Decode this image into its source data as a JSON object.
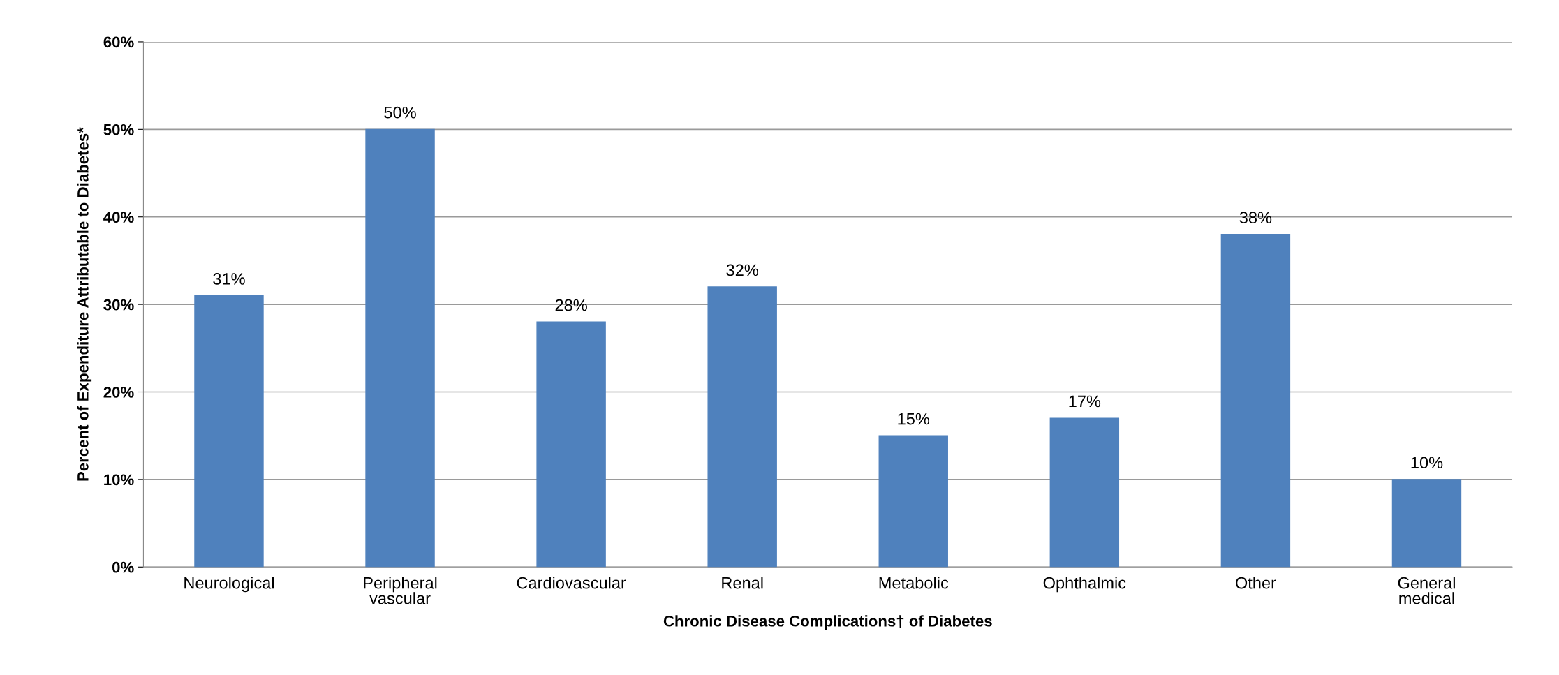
{
  "chart_data": {
    "type": "bar",
    "xlabel": "Chronic Disease Complications† of Diabetes",
    "ylabel": "Percent of Expenditure Attributable to Diabetes*",
    "categories": [
      "Neurological",
      "Peripheral\nvascular",
      "Cardiovascular",
      "Renal",
      "Metabolic",
      "Ophthalmic",
      "Other",
      "General\nmedical"
    ],
    "values": [
      31,
      50,
      28,
      32,
      15,
      17,
      38,
      10
    ],
    "value_labels": [
      "31%",
      "50%",
      "28%",
      "32%",
      "15%",
      "17%",
      "38%",
      "10%"
    ],
    "color": "#4f81bd",
    "ylim": [
      0,
      60
    ],
    "yticks": [
      {
        "value": 0,
        "label": "0%"
      },
      {
        "value": 10,
        "label": "10%"
      },
      {
        "value": 20,
        "label": "20%"
      },
      {
        "value": 30,
        "label": "30%"
      },
      {
        "value": 40,
        "label": "40%"
      },
      {
        "value": 50,
        "label": "50%"
      },
      {
        "value": 60,
        "label": "60%"
      }
    ],
    "grid": "y",
    "legend": false
  }
}
